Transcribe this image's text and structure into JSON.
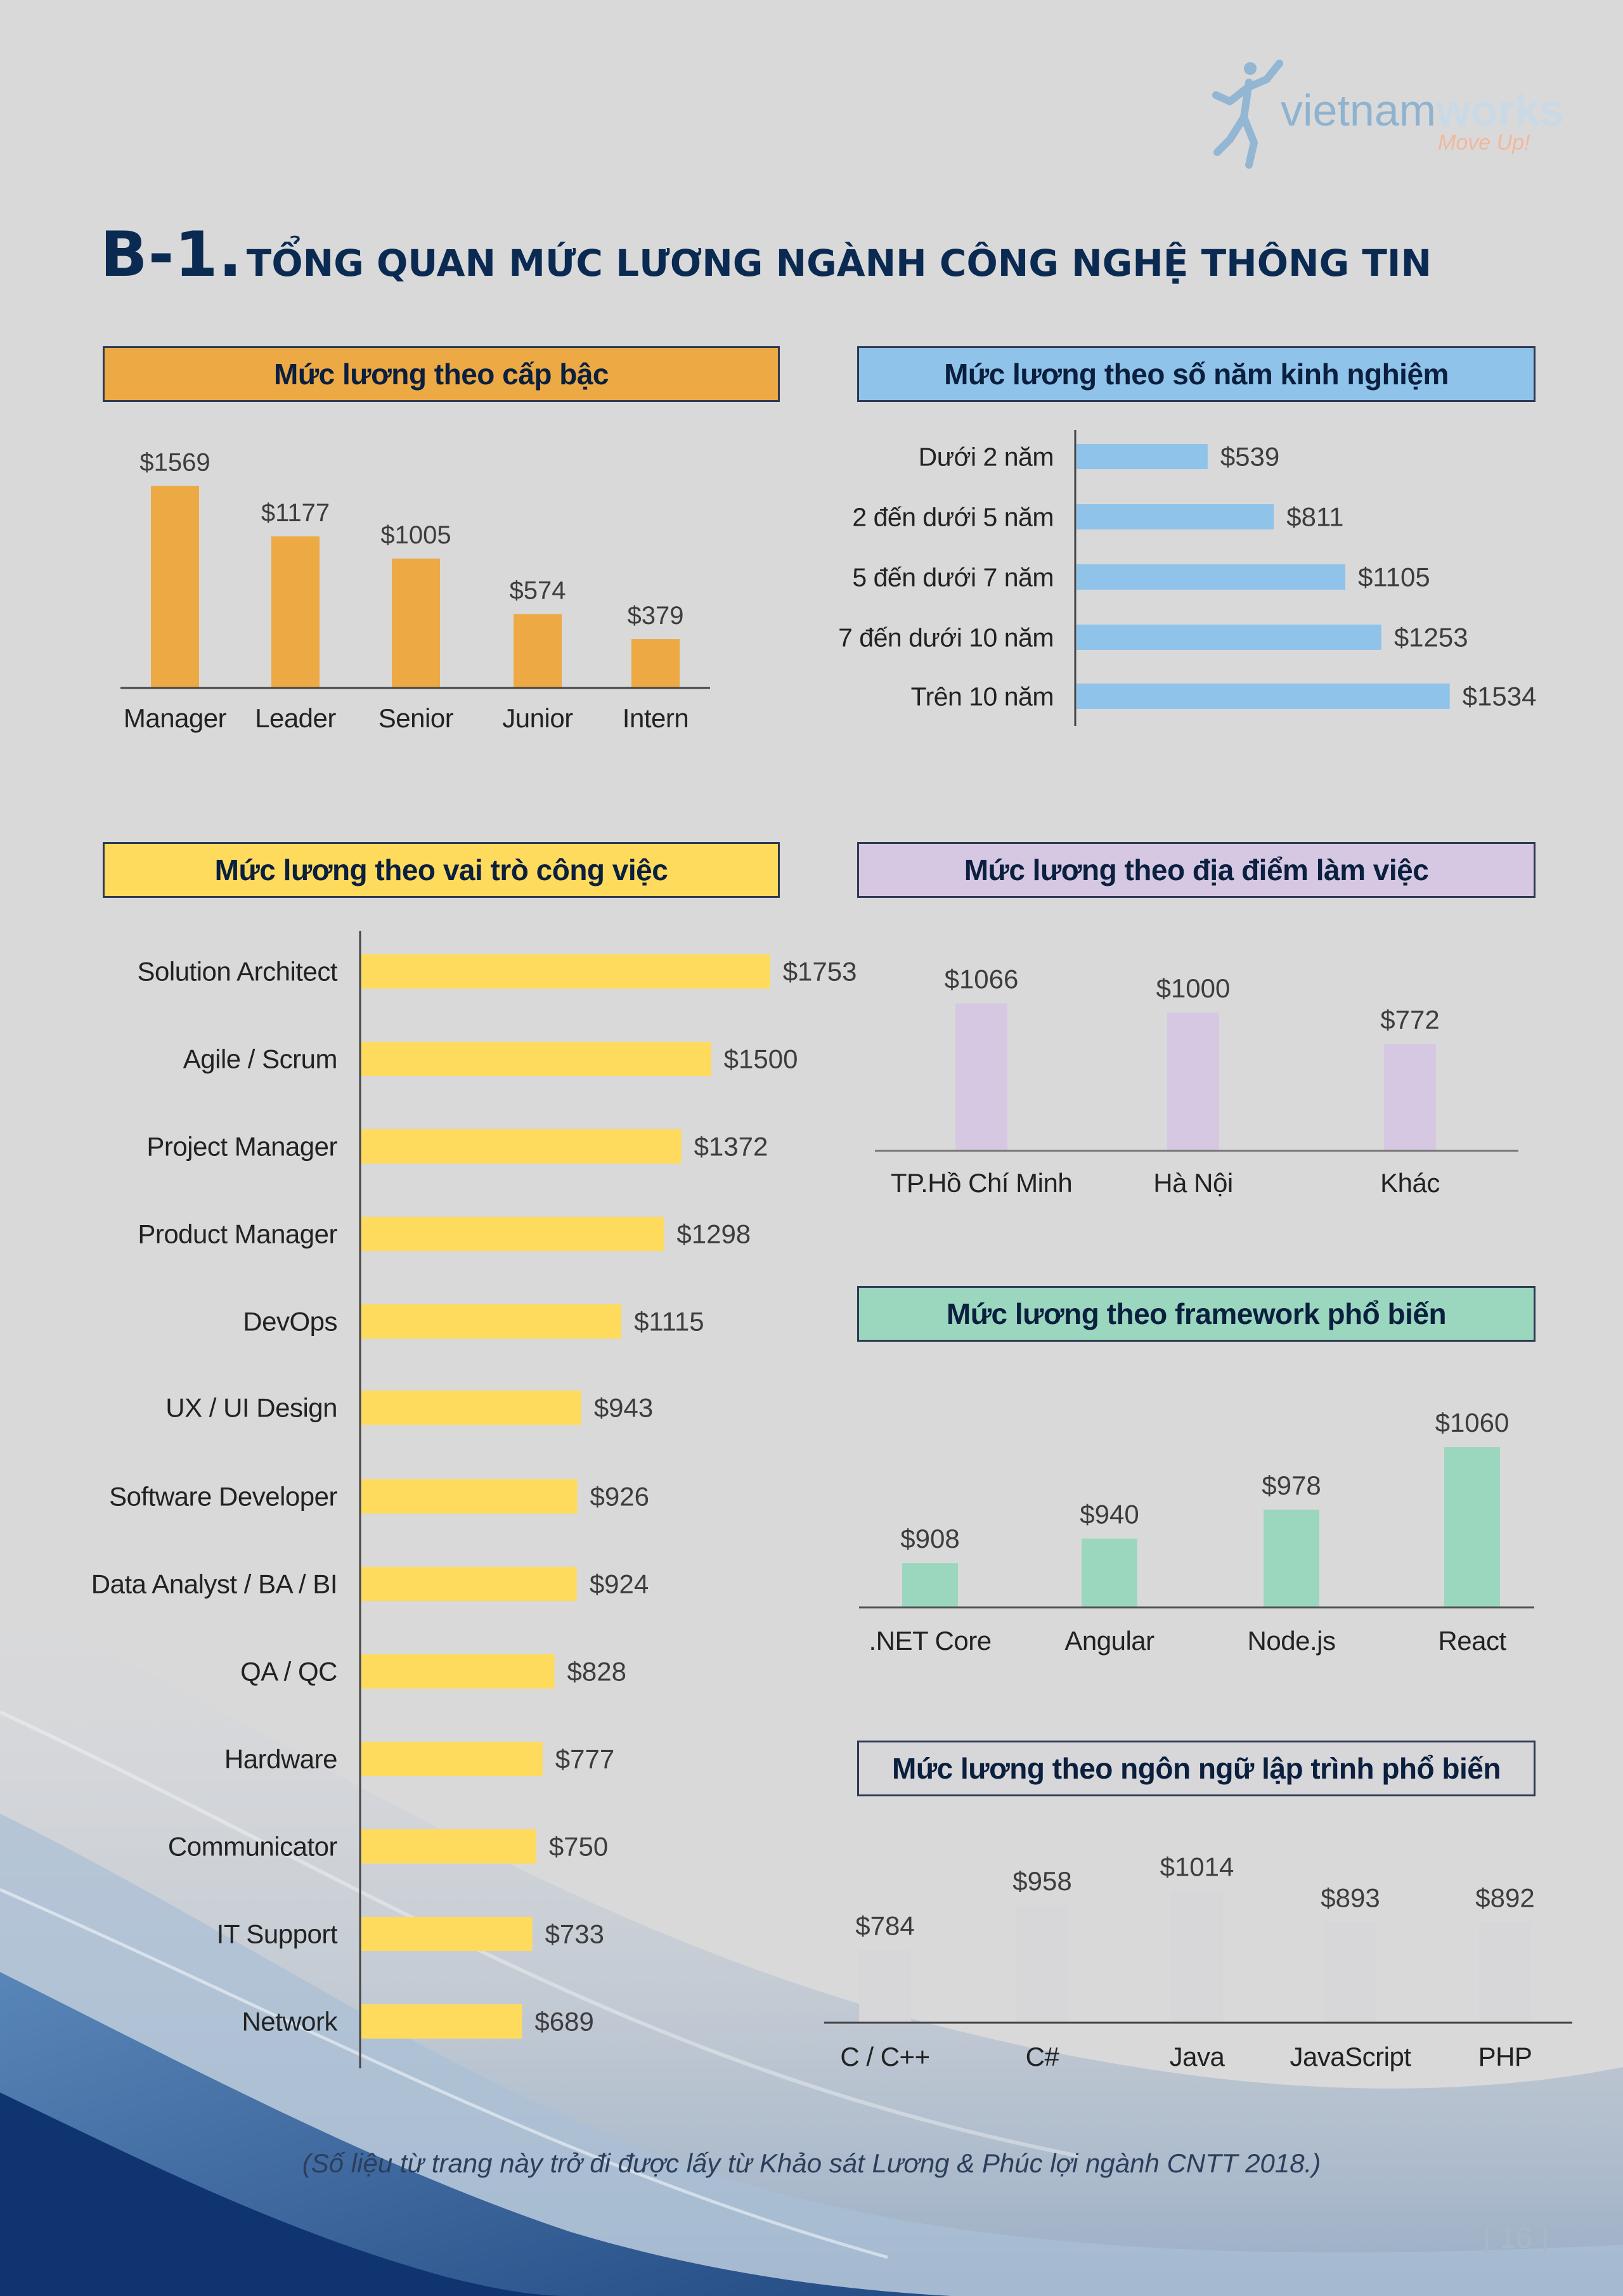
{
  "brand": {
    "name_light": "vietnam",
    "name_bold": "works",
    "tagline": "Move Up!"
  },
  "section": {
    "code": "B-1.",
    "title": "TỔNG QUAN MỨC LƯƠNG NGÀNH CÔNG NGHỆ THÔNG TIN"
  },
  "colors": {
    "orange": "#eca944",
    "blue": "#8fc3e9",
    "yellow": "#fedb5c",
    "purple": "#d6c8e3",
    "green": "#9bd7be",
    "grey": "#d7d6d8",
    "navy": "#0b2a52"
  },
  "chart_data": [
    {
      "id": "by_level",
      "type": "bar",
      "orientation": "vertical",
      "title": "Mức lương theo cấp bậc",
      "categories": [
        "Manager",
        "Leader",
        "Senior",
        "Junior",
        "Intern"
      ],
      "values": [
        1569,
        1177,
        1005,
        574,
        379
      ],
      "labels": [
        "$1569",
        "$1177",
        "$1005",
        "$574",
        "$379"
      ],
      "ylim": [
        0,
        1600
      ],
      "color": "#eca944",
      "grid": false
    },
    {
      "id": "by_experience",
      "type": "bar",
      "orientation": "horizontal",
      "title": "Mức lương theo số năm kinh nghiệm",
      "categories": [
        "Dưới 2 năm",
        "2 đến dưới 5 năm",
        "5 đến dưới 7 năm",
        "7 đến dưới 10 năm",
        "Trên 10 năm"
      ],
      "values": [
        539,
        811,
        1105,
        1253,
        1534
      ],
      "labels": [
        "$539",
        "$811",
        "$1105",
        "$1253",
        "$1534"
      ],
      "xlim": [
        0,
        1600
      ],
      "color": "#8fc3e9",
      "grid": false
    },
    {
      "id": "by_role",
      "type": "bar",
      "orientation": "horizontal",
      "title": "Mức lương theo vai trò công việc",
      "categories": [
        "Solution Architect",
        "Agile / Scrum",
        "Project Manager",
        "Product Manager",
        "DevOps",
        "UX / UI Design",
        "Software Developer",
        "Data Analyst / BA / BI",
        "QA / QC",
        "Hardware",
        "Communicator",
        "IT Support",
        "Network"
      ],
      "values": [
        1753,
        1500,
        1372,
        1298,
        1115,
        943,
        926,
        924,
        828,
        777,
        750,
        733,
        689
      ],
      "labels": [
        "$1753",
        "$1500",
        "$1372",
        "$1298",
        "$1115",
        "$943",
        "$926",
        "$924",
        "$828",
        "$777",
        "$750",
        "$733",
        "$689"
      ],
      "xlim": [
        0,
        1800
      ],
      "color": "#fedb5c",
      "grid": false
    },
    {
      "id": "by_location",
      "type": "bar",
      "orientation": "vertical",
      "title": "Mức lương theo địa điểm làm việc",
      "categories": [
        "TP.Hồ Chí Minh",
        "Hà Nội",
        "Khác"
      ],
      "values": [
        1066,
        1000,
        772
      ],
      "labels": [
        "$1066",
        "$1000",
        "$772"
      ],
      "ylim": [
        0,
        1100
      ],
      "color": "#d6c8e3",
      "grid": false
    },
    {
      "id": "by_framework",
      "type": "bar",
      "orientation": "vertical",
      "title": "Mức lương theo framework phổ biến",
      "categories": [
        ".NET Core",
        "Angular",
        "Node.js",
        "React"
      ],
      "values": [
        908,
        940,
        978,
        1060
      ],
      "labels": [
        "$908",
        "$940",
        "$978",
        "$1060"
      ],
      "ylim": [
        850,
        1070
      ],
      "color": "#9bd7be",
      "grid": false
    },
    {
      "id": "by_language",
      "type": "bar",
      "orientation": "vertical",
      "title": "Mức lương theo ngôn ngữ lập trình phổ biến",
      "categories": [
        "C / C++",
        "C#",
        "Java",
        "JavaScript",
        "PHP"
      ],
      "values": [
        784,
        958,
        1014,
        893,
        892
      ],
      "labels": [
        "$784",
        "$958",
        "$1014",
        "$893",
        "$892"
      ],
      "ylim": [
        500,
        1020
      ],
      "color": "#d7d6d8",
      "grid": false
    }
  ],
  "footnote": "(Số liệu từ trang này trở đi được lấy từ Khảo sát Lương & Phúc lợi ngành CNTT 2018.)",
  "page_number": "[ 16 ]"
}
